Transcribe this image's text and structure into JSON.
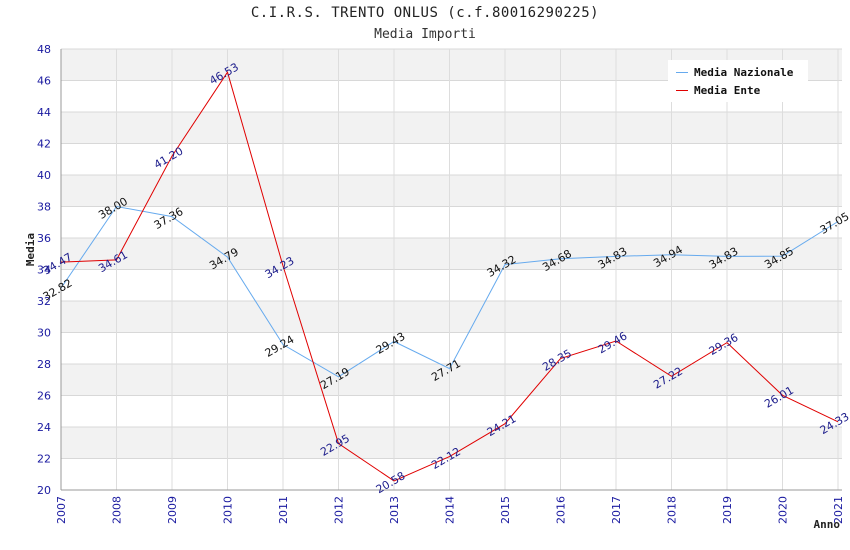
{
  "title": "C.I.R.S. TRENTO ONLUS (c.f.80016290225)",
  "subtitle": "Media Importi",
  "colors": {
    "nazionale": "#66aaee",
    "ente": "#e00000",
    "grid_band": "#f2f2f2",
    "tick": "#1a1aa0"
  },
  "chart_data": {
    "type": "line",
    "title": "C.I.R.S. TRENTO ONLUS (c.f.80016290225)",
    "subtitle": "Media Importi",
    "xlabel": "Anno",
    "ylabel": "Media",
    "ylim": [
      20,
      48
    ],
    "yticks": [
      20,
      22,
      24,
      26,
      28,
      30,
      32,
      34,
      36,
      38,
      40,
      42,
      44,
      46,
      48
    ],
    "x": [
      "2007",
      "2008",
      "2009",
      "2010",
      "2011",
      "2012",
      "2013",
      "2014",
      "2015",
      "2016",
      "2017",
      "2018",
      "2019",
      "2020",
      "2021"
    ],
    "legend_position": "top-right",
    "series": [
      {
        "name": "Media Nazionale",
        "values": [
          32.82,
          38.0,
          37.36,
          34.79,
          29.24,
          27.19,
          29.43,
          27.71,
          34.32,
          34.68,
          34.83,
          34.94,
          34.83,
          34.85,
          37.05
        ],
        "labels": [
          "32.82",
          "38.00",
          "37.36",
          "34.79",
          "29.24",
          "27.19",
          "29.43",
          "27.71",
          "34.32",
          "34.68",
          "34.83",
          "34.94",
          "34.83",
          "34.85",
          "37.05"
        ]
      },
      {
        "name": "Media Ente",
        "values": [
          34.47,
          34.61,
          41.2,
          46.53,
          34.23,
          22.95,
          20.58,
          22.12,
          24.21,
          28.35,
          29.46,
          27.22,
          29.36,
          26.01,
          24.33
        ],
        "labels": [
          "34.47",
          "34.61",
          "41.20",
          "46.53",
          "34.23",
          "22.95",
          "20.58",
          "22.12",
          "24.21",
          "28.35",
          "29.46",
          "27.22",
          "29.36",
          "26.01",
          "24.33"
        ]
      }
    ]
  }
}
